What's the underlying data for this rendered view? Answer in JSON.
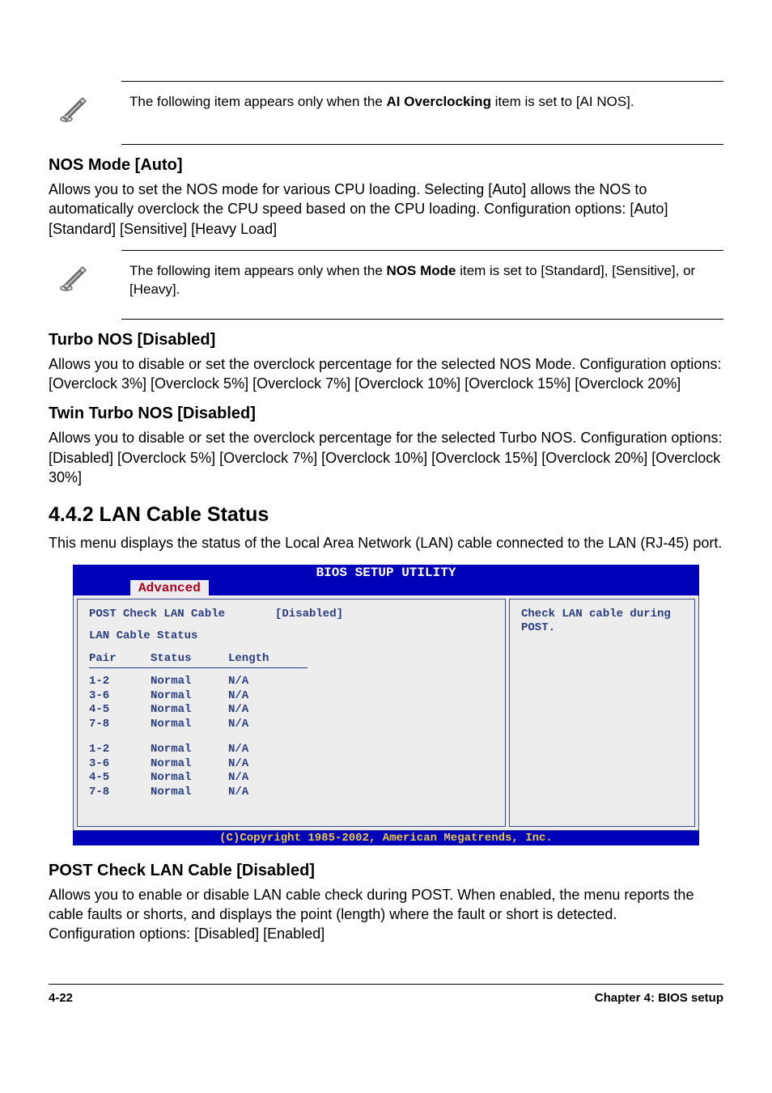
{
  "notes": {
    "ai_overclocking": {
      "prefix": "The following item appears only when the ",
      "bold": "AI Overclocking",
      "suffix": " item is set to [AI NOS]."
    },
    "nos_mode": {
      "prefix": "The following item appears only when the ",
      "bold": "NOS Mode",
      "suffix": " item is set to [Standard], [Sensitive], or [Heavy]."
    }
  },
  "sections": {
    "nos_mode": {
      "title": "NOS Mode [Auto]",
      "text": "Allows you to set the NOS mode for various CPU loading. Selecting [Auto] allows the NOS to automatically overclock the CPU speed based on the CPU loading. Configuration options: [Auto] [Standard] [Sensitive] [Heavy Load]"
    },
    "turbo_nos": {
      "title": "Turbo NOS [Disabled]",
      "text": "Allows you to disable or set the overclock percentage for the selected NOS Mode. Configuration options: [Overclock 3%] [Overclock 5%] [Overclock 7%] [Overclock 10%] [Overclock 15%] [Overclock 20%]"
    },
    "twin_turbo_nos": {
      "title": "Twin Turbo NOS [Disabled]",
      "text": "Allows you to disable or set the overclock percentage for the selected Turbo NOS. Configuration options: [Disabled] [Overclock 5%] [Overclock 7%] [Overclock 10%] [Overclock 15%] [Overclock 20%] [Overclock 30%]"
    },
    "lan_cable_status": {
      "title": "4.4.2   LAN Cable Status",
      "text": "This menu displays the status of the Local Area Network (LAN) cable connected to the LAN (RJ-45) port."
    },
    "post_check": {
      "title": "POST Check LAN Cable [Disabled]",
      "text": "Allows you to enable or disable LAN cable check during POST. When enabled, the menu reports the cable faults or shorts, and displays the point (length) where the fault or short is detected.\nConfiguration options: [Disabled] [Enabled]"
    }
  },
  "bios": {
    "title": "BIOS SETUP UTILITY",
    "tab": "Advanced",
    "option": {
      "label": "POST Check LAN Cable",
      "value": "[Disabled]"
    },
    "status_title": "LAN Cable Status",
    "columns": {
      "pair": "Pair",
      "status": "Status",
      "length": "Length"
    },
    "block1": [
      {
        "pair": "1-2",
        "status": "Normal",
        "length": "N/A"
      },
      {
        "pair": "3-6",
        "status": "Normal",
        "length": "N/A"
      },
      {
        "pair": "4-5",
        "status": "Normal",
        "length": "N/A"
      },
      {
        "pair": "7-8",
        "status": "Normal",
        "length": "N/A"
      }
    ],
    "block2": [
      {
        "pair": "1-2",
        "status": "Normal",
        "length": "N/A"
      },
      {
        "pair": "3-6",
        "status": "Normal",
        "length": "N/A"
      },
      {
        "pair": "4-5",
        "status": "Normal",
        "length": "N/A"
      },
      {
        "pair": "7-8",
        "status": "Normal",
        "length": "N/A"
      }
    ],
    "help_text": "Check LAN cable during POST.",
    "footer": "(C)Copyright 1985-2002, American Megatrends, Inc."
  },
  "footer": {
    "left": "4-22",
    "right": "Chapter 4: BIOS setup"
  }
}
